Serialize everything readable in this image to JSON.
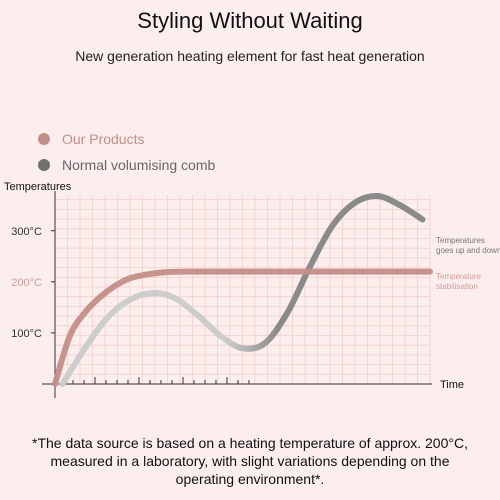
{
  "header": {
    "title": "Styling Without Waiting",
    "subtitle": "New generation heating element for fast heat generation"
  },
  "footnote": "*The data source is based on a heating temperature of approx. 200°C, measured in a laboratory, with slight variations depending on the operating environment*.",
  "colors": {
    "background": "#fbeeed",
    "grid": "#f2cfcf",
    "our_products": "#c48e88",
    "normal_comb": "#8a8a8a",
    "normal_comb_light": "#cdcdcd",
    "accent_label": "#d59c97"
  },
  "chart_data": {
    "type": "line",
    "ylabel": "Temperatures",
    "xlabel": "Time",
    "ylim": [
      0,
      370
    ],
    "grid": true,
    "legend_position": "top-left",
    "y_ticks": [
      {
        "value": 100,
        "label": "100°C",
        "highlight": false
      },
      {
        "value": 200,
        "label": "200°C",
        "highlight": true
      },
      {
        "value": 300,
        "label": "300°C",
        "highlight": false
      }
    ],
    "series": [
      {
        "name": "Our Products",
        "color": "#c48e88",
        "annotation": "Temperature stabilisation",
        "x": [
          0,
          4,
          8,
          12,
          16,
          20,
          25,
          30,
          35,
          40,
          50,
          60,
          80,
          100
        ],
        "y": [
          0,
          95,
          140,
          170,
          192,
          207,
          215,
          219,
          220,
          220,
          220,
          220,
          220,
          220
        ]
      },
      {
        "name": "Normal volumising comb",
        "color": "#8a8a8a",
        "annotation": "Temperatures goes up and down",
        "x": [
          2,
          8,
          14,
          20,
          26,
          32,
          38,
          44,
          50,
          56,
          62,
          68,
          74,
          80,
          86,
          92,
          98
        ],
        "y": [
          0,
          70,
          130,
          165,
          178,
          168,
          135,
          95,
          70,
          80,
          140,
          230,
          310,
          355,
          368,
          350,
          322
        ]
      }
    ]
  }
}
